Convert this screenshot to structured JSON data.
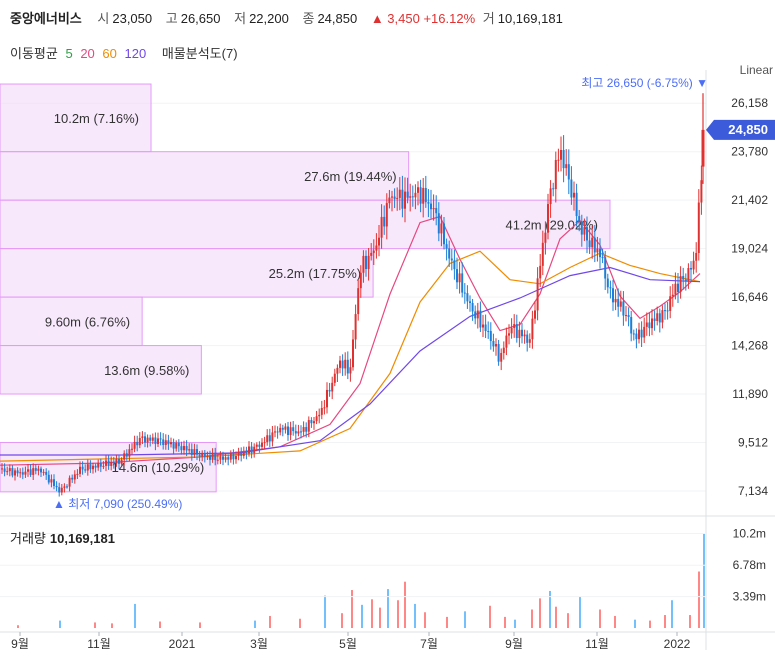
{
  "header": {
    "name": "중앙에너비스",
    "open_label": "시",
    "open": "23,050",
    "high_label": "고",
    "high": "26,650",
    "low_label": "저",
    "low": "22,200",
    "close_label": "종",
    "close": "24,850",
    "change": "▲ 3,450 +16.12%",
    "volume_label": "거",
    "volume": "10,169,181"
  },
  "ma_legend": {
    "title": "이동평균",
    "periods": [
      "5",
      "20",
      "60",
      "120"
    ],
    "colors": [
      "#2f9e44",
      "#e64980",
      "#f08c00",
      "#7048e8"
    ],
    "volume_profile_label": "매물분석도(7)"
  },
  "scale_label": "Linear",
  "volume_title": {
    "label": "거래량",
    "value": "10,169,181"
  },
  "chart_data": {
    "type": "candlestick",
    "y_ticks": [
      7134,
      9512,
      11890,
      14268,
      16646,
      19024,
      21402,
      23780,
      26158
    ],
    "ylim": [
      6200,
      27200
    ],
    "current_price": 24850,
    "current_price_label": "24,850",
    "max_marker": {
      "label": "최고 26,650 (-6.75%) ▼",
      "price": 26650
    },
    "min_marker": {
      "label": "▲ 최저 7,090 (250.49%)",
      "price": 7090
    },
    "x_labels": [
      "9월",
      "11월",
      "2021",
      "3월",
      "5월",
      "7월",
      "9월",
      "11월",
      "2022"
    ],
    "volume_ticks": [
      "10.2m",
      "6.78m",
      "3.39m"
    ],
    "volume_ylim": [
      0,
      10.8
    ],
    "colors": {
      "up": "#e03131",
      "down": "#1c7ed6",
      "profile_fill": "#f3d9fa",
      "profile_stroke": "#e599f7",
      "price_badge": "#3b5bdb"
    },
    "volume_profile": [
      {
        "price_low": 23780,
        "price_high": 27100,
        "label": "10.2m (7.16%)",
        "volume_m": 10.2
      },
      {
        "price_low": 21402,
        "price_high": 23780,
        "label": "27.6m (19.44%)",
        "volume_m": 27.6
      },
      {
        "price_low": 19024,
        "price_high": 21402,
        "label": "41.2m (29.02%)",
        "volume_m": 41.2
      },
      {
        "price_low": 16646,
        "price_high": 19024,
        "label": "25.2m (17.75%)",
        "volume_m": 25.2
      },
      {
        "price_low": 14268,
        "price_high": 16646,
        "label": "9.60m (6.76%)",
        "volume_m": 9.6
      },
      {
        "price_low": 11890,
        "price_high": 14268,
        "label": "13.6m (9.58%)",
        "volume_m": 13.6
      },
      {
        "price_low": 7090,
        "price_high": 9512,
        "label": "14.6m (10.29%)",
        "volume_m": 14.6
      }
    ],
    "price_path": [
      [
        0,
        8200
      ],
      [
        20,
        8000
      ],
      [
        40,
        8200
      ],
      [
        60,
        7100
      ],
      [
        80,
        8200
      ],
      [
        100,
        8400
      ],
      [
        120,
        8600
      ],
      [
        140,
        9700
      ],
      [
        160,
        9600
      ],
      [
        180,
        9300
      ],
      [
        200,
        8900
      ],
      [
        220,
        8700
      ],
      [
        240,
        8900
      ],
      [
        260,
        9400
      ],
      [
        280,
        10200
      ],
      [
        300,
        10000
      ],
      [
        320,
        10900
      ],
      [
        340,
        13500
      ],
      [
        350,
        13000
      ],
      [
        360,
        18000
      ],
      [
        375,
        19000
      ],
      [
        390,
        21600
      ],
      [
        405,
        21500
      ],
      [
        420,
        21800
      ],
      [
        435,
        20800
      ],
      [
        450,
        18500
      ],
      [
        470,
        16200
      ],
      [
        490,
        14700
      ],
      [
        500,
        13600
      ],
      [
        510,
        15200
      ],
      [
        530,
        14500
      ],
      [
        540,
        18200
      ],
      [
        550,
        21700
      ],
      [
        560,
        23900
      ],
      [
        570,
        22200
      ],
      [
        580,
        20100
      ],
      [
        590,
        19300
      ],
      [
        600,
        18800
      ],
      [
        610,
        16800
      ],
      [
        625,
        15900
      ],
      [
        635,
        14600
      ],
      [
        650,
        15400
      ],
      [
        665,
        15900
      ],
      [
        675,
        17100
      ],
      [
        685,
        17600
      ],
      [
        695,
        18400
      ],
      [
        705,
        24850
      ]
    ],
    "ma_paths": {
      "ma20": [
        [
          0,
          8400
        ],
        [
          100,
          8500
        ],
        [
          200,
          8800
        ],
        [
          280,
          9300
        ],
        [
          330,
          10400
        ],
        [
          360,
          12400
        ],
        [
          390,
          16800
        ],
        [
          420,
          20300
        ],
        [
          440,
          20600
        ],
        [
          460,
          18500
        ],
        [
          480,
          16600
        ],
        [
          500,
          15000
        ],
        [
          520,
          15300
        ],
        [
          540,
          16800
        ],
        [
          560,
          19500
        ],
        [
          580,
          20400
        ],
        [
          600,
          19200
        ],
        [
          620,
          16700
        ],
        [
          640,
          15600
        ],
        [
          660,
          16200
        ],
        [
          680,
          16900
        ],
        [
          700,
          17800
        ]
      ],
      "ma60": [
        [
          0,
          8600
        ],
        [
          100,
          8700
        ],
        [
          200,
          8800
        ],
        [
          300,
          9100
        ],
        [
          350,
          10200
        ],
        [
          390,
          12900
        ],
        [
          420,
          16400
        ],
        [
          450,
          18300
        ],
        [
          480,
          18900
        ],
        [
          510,
          17500
        ],
        [
          540,
          17300
        ],
        [
          570,
          18100
        ],
        [
          600,
          18800
        ],
        [
          630,
          18200
        ],
        [
          660,
          17800
        ],
        [
          700,
          17400
        ]
      ],
      "ma120": [
        [
          0,
          8900
        ],
        [
          120,
          8900
        ],
        [
          240,
          9000
        ],
        [
          320,
          9600
        ],
        [
          370,
          11400
        ],
        [
          420,
          14000
        ],
        [
          470,
          15700
        ],
        [
          520,
          16600
        ],
        [
          570,
          17700
        ],
        [
          610,
          18100
        ],
        [
          650,
          17500
        ],
        [
          700,
          17400
        ]
      ]
    },
    "volume_bars": [
      [
        18,
        0.3
      ],
      [
        60,
        0.8
      ],
      [
        95,
        0.6
      ],
      [
        112,
        0.5
      ],
      [
        135,
        2.6
      ],
      [
        160,
        0.7
      ],
      [
        200,
        0.6
      ],
      [
        255,
        0.8
      ],
      [
        270,
        1.3
      ],
      [
        300,
        1.0
      ],
      [
        325,
        3.5
      ],
      [
        342,
        1.6
      ],
      [
        352,
        4.1
      ],
      [
        362,
        2.5
      ],
      [
        372,
        3.1
      ],
      [
        380,
        2.2
      ],
      [
        388,
        4.2
      ],
      [
        398,
        3.0
      ],
      [
        405,
        5.0
      ],
      [
        415,
        2.6
      ],
      [
        425,
        1.7
      ],
      [
        447,
        1.2
      ],
      [
        465,
        1.8
      ],
      [
        490,
        2.4
      ],
      [
        505,
        1.2
      ],
      [
        515,
        0.9
      ],
      [
        532,
        2.0
      ],
      [
        540,
        3.2
      ],
      [
        550,
        4.0
      ],
      [
        556,
        2.3
      ],
      [
        568,
        1.6
      ],
      [
        580,
        3.4
      ],
      [
        600,
        2.0
      ],
      [
        615,
        1.3
      ],
      [
        635,
        0.9
      ],
      [
        650,
        0.8
      ],
      [
        665,
        1.4
      ],
      [
        672,
        3.0
      ],
      [
        690,
        1.4
      ],
      [
        699,
        6.1
      ],
      [
        704,
        10.2
      ]
    ]
  }
}
